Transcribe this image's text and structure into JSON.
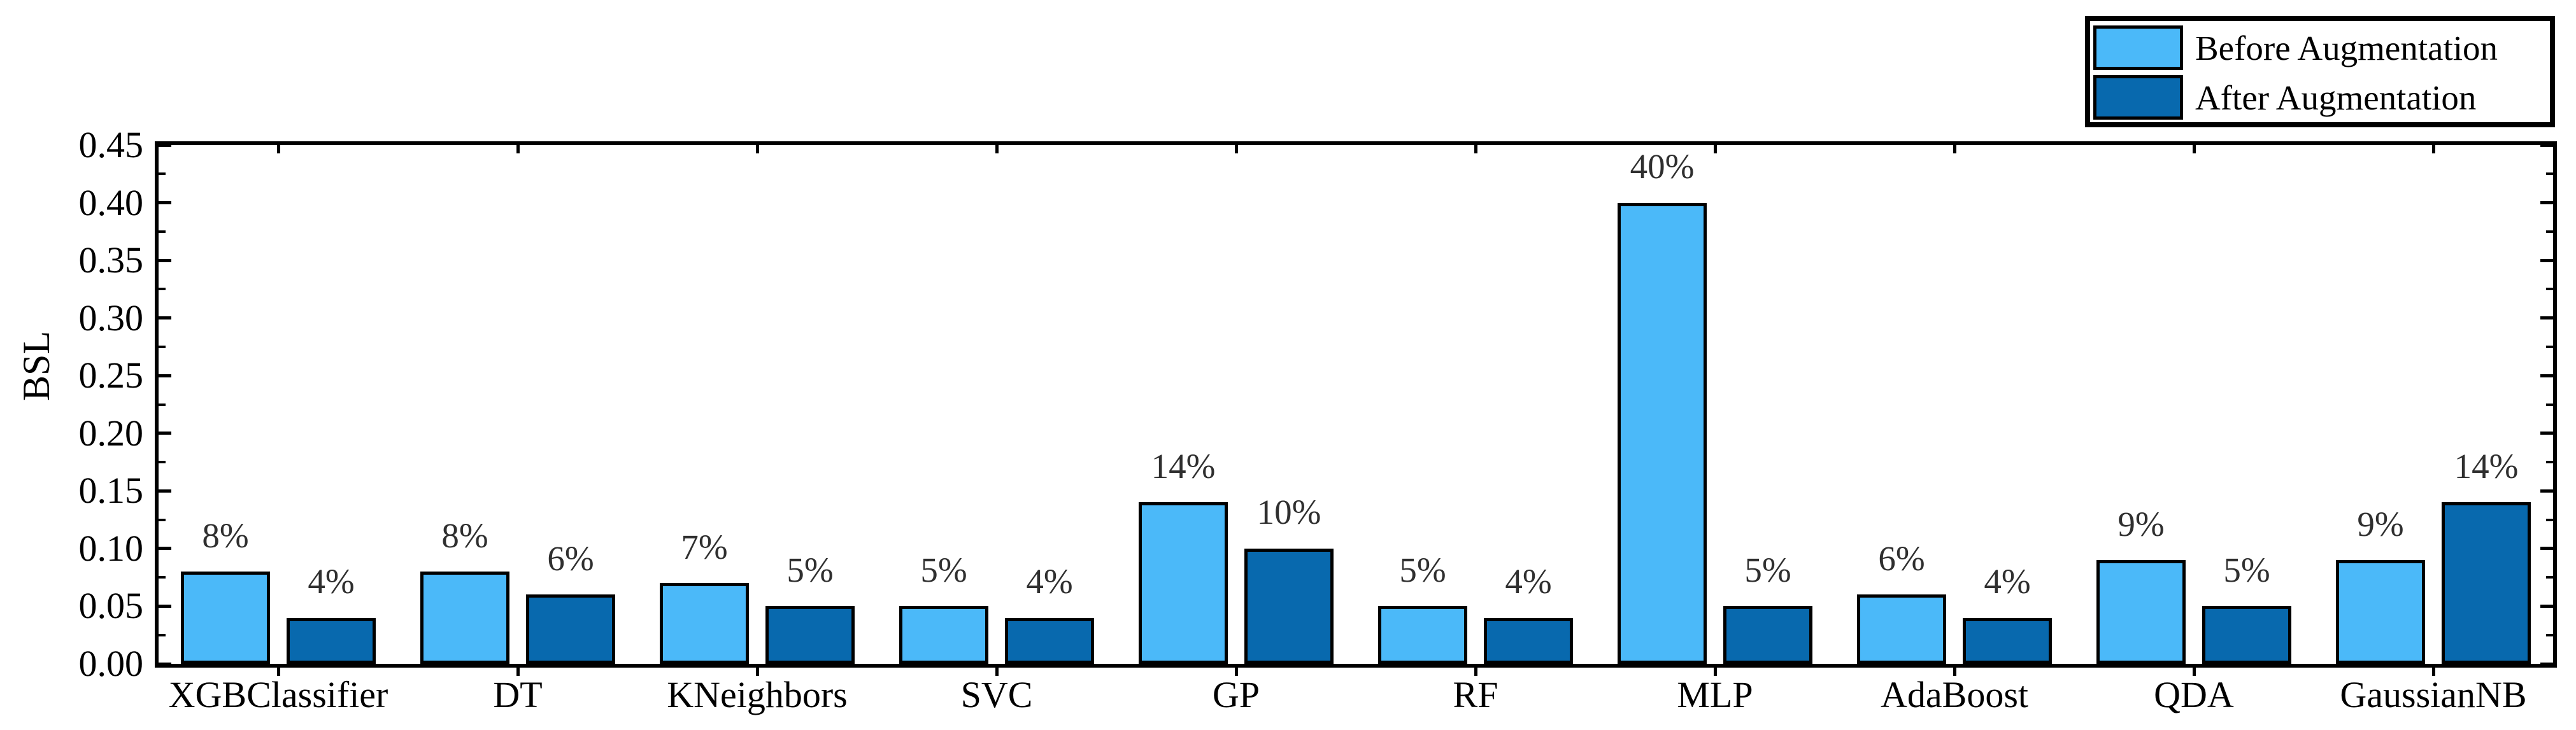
{
  "chart_data": {
    "type": "bar",
    "title": "",
    "xlabel": "",
    "ylabel": "BSL",
    "categories": [
      "XGBClassifier",
      "DT",
      "KNeighbors",
      "SVC",
      "GP",
      "RF",
      "MLP",
      "AdaBoost",
      "QDA",
      "GaussianNB"
    ],
    "series": [
      {
        "name": "Before Augmentation",
        "color": "#4BB9F9",
        "values": [
          0.08,
          0.08,
          0.07,
          0.05,
          0.14,
          0.05,
          0.4,
          0.06,
          0.09,
          0.09
        ],
        "bar_labels": [
          "8%",
          "8%",
          "7%",
          "5%",
          "14%",
          "5%",
          "40%",
          "6%",
          "9%",
          "9%"
        ]
      },
      {
        "name": "After Augmentation",
        "color": "#0869AE",
        "values": [
          0.04,
          0.06,
          0.05,
          0.04,
          0.1,
          0.04,
          0.05,
          0.04,
          0.05,
          0.14
        ],
        "bar_labels": [
          "4%",
          "6%",
          "5%",
          "4%",
          "10%",
          "4%",
          "5%",
          "4%",
          "5%",
          "14%"
        ]
      }
    ],
    "ylim": [
      0,
      0.45
    ],
    "ytick_labels": [
      "0.00",
      "0.05",
      "0.10",
      "0.15",
      "0.20",
      "0.25",
      "0.30",
      "0.35",
      "0.40",
      "0.45"
    ],
    "ytick_minor_step": 0.025,
    "grid": false,
    "legend_position": "top-right-outside",
    "annotation_color": "#2F2F2F",
    "edge_color": "#000000",
    "background_color": "#FFFFFF"
  }
}
